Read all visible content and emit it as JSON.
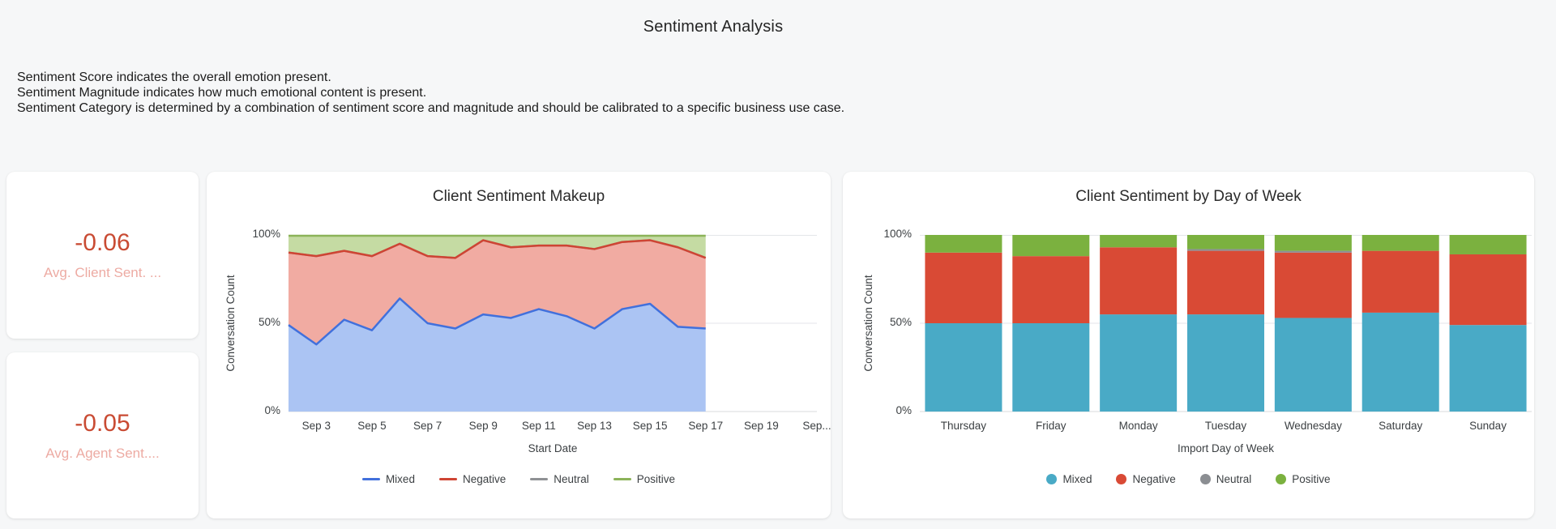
{
  "page": {
    "title": "Sentiment Analysis",
    "description_lines": [
      "Sentiment Score indicates the overall emotion present.",
      "Sentiment Magnitude indicates how much emotional content is present.",
      "Sentiment Category is determined by a combination of sentiment score and magnitude and should be calibrated to a specific business use case."
    ]
  },
  "scorecards": [
    {
      "value": "-0.06",
      "label": "Avg. Client Sent. ...",
      "value_color": "#c94b33",
      "label_color": "#edaba3"
    },
    {
      "value": "-0.05",
      "label": "Avg. Agent Sent....",
      "value_color": "#c94b33",
      "label_color": "#edaba3"
    }
  ],
  "colors": {
    "page_background": "#f6f7f8",
    "card_background": "#ffffff",
    "gridline": "#e4e6e9",
    "axis_text": "#3c4043"
  },
  "chart_data": [
    {
      "type": "area",
      "title": "Client Sentiment Makeup",
      "stacked_percent": true,
      "xlabel": "Start Date",
      "ylabel": "Conversation Count",
      "ylim": [
        0,
        100
      ],
      "y_ticks": [
        "0%",
        "50%",
        "100%"
      ],
      "grid": true,
      "legend_position": "bottom",
      "x": [
        "Sep 2",
        "Sep 3",
        "Sep 4",
        "Sep 5",
        "Sep 6",
        "Sep 7",
        "Sep 8",
        "Sep 9",
        "Sep 10",
        "Sep 11",
        "Sep 12",
        "Sep 13",
        "Sep 14",
        "Sep 15",
        "Sep 16",
        "Sep 17"
      ],
      "x_axis_ticks": [
        "Sep 3",
        "Sep 5",
        "Sep 7",
        "Sep 9",
        "Sep 11",
        "Sep 13",
        "Sep 15",
        "Sep 17",
        "Sep 19",
        "Sep..."
      ],
      "x_domain_days": 19,
      "series": [
        {
          "name": "Mixed",
          "color": "#4170dc",
          "fill": "#abc4f3",
          "values": [
            49,
            38,
            52,
            46,
            64,
            50,
            47,
            55,
            53,
            58,
            54,
            47,
            58,
            61,
            48,
            47
          ]
        },
        {
          "name": "Negative",
          "color": "#cf4433",
          "fill": "#f1aba2",
          "values": [
            41,
            50,
            39,
            42,
            31,
            38,
            40,
            42,
            40,
            36,
            40,
            45,
            38,
            36,
            45,
            40
          ]
        },
        {
          "name": "Neutral",
          "color": "#8f9194",
          "fill": "#cfd1d3",
          "values": [
            0,
            0,
            0,
            0,
            0,
            0,
            0,
            0,
            0,
            0,
            0,
            0,
            0,
            0,
            0,
            0
          ]
        },
        {
          "name": "Positive",
          "color": "#8cb359",
          "fill": "#c5dba3",
          "values": [
            10,
            12,
            9,
            12,
            5,
            12,
            13,
            3,
            7,
            6,
            6,
            8,
            4,
            3,
            7,
            13
          ]
        }
      ]
    },
    {
      "type": "bar",
      "title": "Client Sentiment by Day of Week",
      "stacked_percent": true,
      "xlabel": "Import Day of Week",
      "ylabel": "Conversation Count",
      "ylim": [
        0,
        100
      ],
      "y_ticks": [
        "0%",
        "50%",
        "100%"
      ],
      "grid": true,
      "legend_position": "bottom",
      "categories": [
        "Thursday",
        "Friday",
        "Monday",
        "Tuesday",
        "Wednesday",
        "Saturday",
        "Sunday"
      ],
      "series": [
        {
          "name": "Mixed",
          "color": "#49aac6",
          "values": [
            50,
            50,
            55,
            55,
            53,
            56,
            49
          ]
        },
        {
          "name": "Negative",
          "color": "#d94a35",
          "values": [
            40,
            38,
            38,
            36,
            37,
            35,
            40
          ]
        },
        {
          "name": "Neutral",
          "color": "#8b8e92",
          "values": [
            0,
            0,
            0,
            1,
            1,
            0,
            0
          ]
        },
        {
          "name": "Positive",
          "color": "#7bb13f",
          "values": [
            10,
            12,
            7,
            8,
            9,
            9,
            11
          ]
        }
      ]
    }
  ]
}
